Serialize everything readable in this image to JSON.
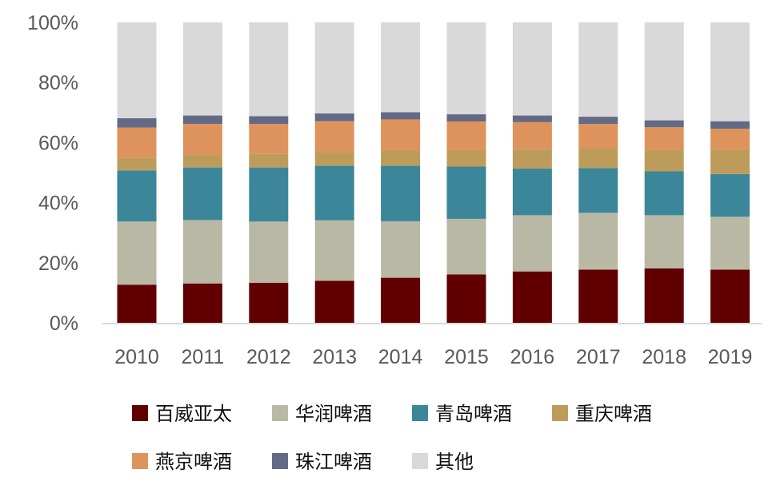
{
  "chart_data": {
    "type": "bar",
    "stacked": true,
    "percent": true,
    "title": "",
    "xlabel": "",
    "ylabel": "",
    "ylim": [
      0,
      100
    ],
    "yticks": [
      "0%",
      "20%",
      "40%",
      "60%",
      "80%",
      "100%"
    ],
    "ytick_values": [
      0,
      20,
      40,
      60,
      80,
      100
    ],
    "categories": [
      "2010",
      "2011",
      "2012",
      "2013",
      "2014",
      "2015",
      "2016",
      "2017",
      "2018",
      "2019"
    ],
    "legend_position": "bottom",
    "series": [
      {
        "name": "百威亚太",
        "color": "#600000",
        "values": [
          12.7,
          13.1,
          13.3,
          14.0,
          15.0,
          16.1,
          17.1,
          17.7,
          18.1,
          17.7
        ]
      },
      {
        "name": "华润啤酒",
        "color": "#b9b8a5",
        "values": [
          21.0,
          21.1,
          20.4,
          20.1,
          18.8,
          18.5,
          18.7,
          18.9,
          17.7,
          17.6
        ]
      },
      {
        "name": "青岛啤酒",
        "color": "#3b8699",
        "values": [
          17.0,
          17.5,
          18.0,
          18.2,
          18.5,
          17.4,
          15.6,
          14.9,
          14.6,
          14.2
        ]
      },
      {
        "name": "重庆啤酒",
        "color": "#bd9c5b",
        "values": [
          4.3,
          4.3,
          4.6,
          4.6,
          5.3,
          5.6,
          6.5,
          6.6,
          7.2,
          8.1
        ]
      },
      {
        "name": "燕京啤酒",
        "color": "#de935c",
        "values": [
          10.0,
          10.2,
          9.9,
          10.2,
          10.1,
          9.4,
          8.9,
          8.1,
          7.5,
          7.0
        ]
      },
      {
        "name": "珠江啤酒",
        "color": "#636a85",
        "values": [
          3.1,
          2.8,
          2.6,
          2.6,
          2.4,
          2.4,
          2.2,
          2.4,
          2.3,
          2.5
        ]
      },
      {
        "name": "其他",
        "color": "#d9d9d9",
        "values": [
          31.9,
          31.0,
          31.2,
          30.3,
          29.9,
          30.6,
          31.0,
          31.4,
          32.6,
          32.9
        ]
      }
    ]
  }
}
